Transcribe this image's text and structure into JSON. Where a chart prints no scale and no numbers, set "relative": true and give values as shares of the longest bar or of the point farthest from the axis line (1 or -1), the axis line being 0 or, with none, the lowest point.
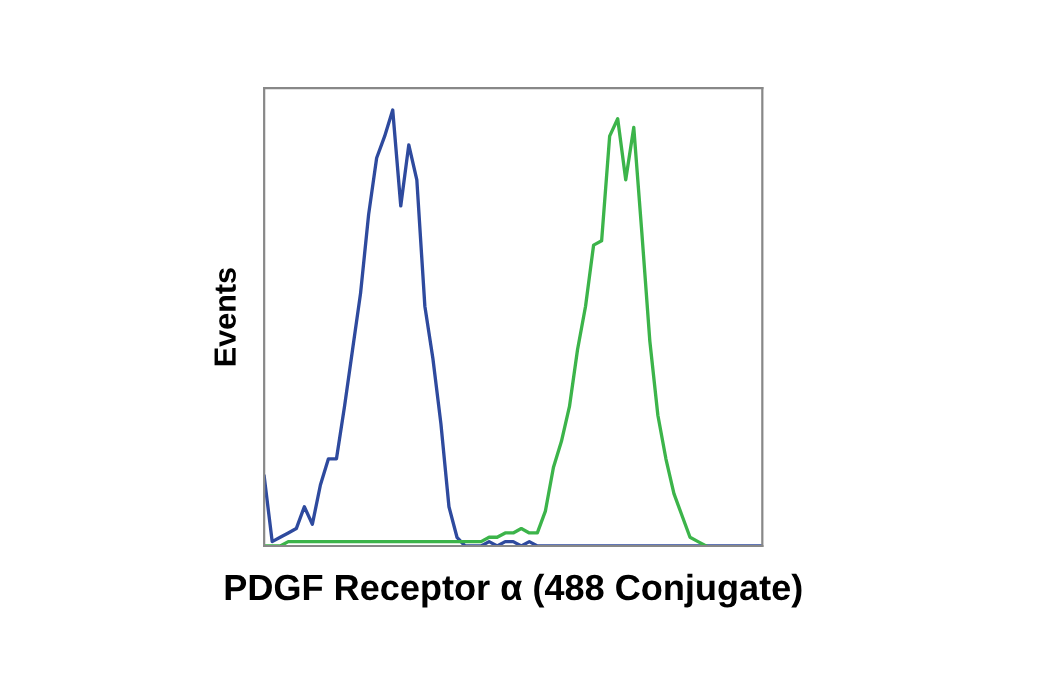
{
  "chart_data": {
    "type": "line",
    "xlabel": "PDGF Receptor α (488 Conjugate)",
    "ylabel": "Events",
    "relative": true,
    "tick_labels": false,
    "categories": [
      null,
      null,
      null,
      null,
      null,
      null,
      null,
      null,
      null,
      null,
      null,
      null,
      null,
      null,
      null,
      null,
      null,
      null,
      null,
      null,
      null,
      null,
      null,
      null,
      null,
      null,
      null,
      null,
      null,
      null,
      null,
      null,
      null,
      null,
      null,
      null,
      null,
      null,
      null,
      null,
      null,
      null,
      null,
      null,
      null,
      null,
      null,
      null,
      null,
      null,
      null,
      null,
      null,
      null,
      null,
      null,
      null,
      null,
      null,
      null,
      null,
      null,
      null
    ],
    "series": [
      {
        "color": "#2e4a9e",
        "values": [
          0.16,
          0.01,
          0.02,
          0.03,
          0.04,
          0.09,
          0.05,
          0.14,
          0.2,
          0.2,
          0.32,
          0.45,
          0.58,
          0.76,
          0.89,
          0.94,
          1,
          0.78,
          0.92,
          0.84,
          0.55,
          0.43,
          0.28,
          0.09,
          0.02,
          0,
          0,
          0,
          0.01,
          0,
          0.01,
          0.01,
          0,
          0.01,
          0,
          0,
          0,
          0,
          0,
          0,
          0,
          0,
          0,
          0,
          0,
          0,
          0,
          0,
          0,
          0,
          0,
          0,
          0,
          0,
          0,
          0,
          0,
          0,
          0,
          0,
          0,
          0,
          0
        ]
      },
      {
        "color": "#3cb44a",
        "values": [
          0,
          0,
          0,
          0.01,
          0.01,
          0.01,
          0.01,
          0.01,
          0.01,
          0.01,
          0.01,
          0.01,
          0.01,
          0.01,
          0.01,
          0.01,
          0.01,
          0.01,
          0.01,
          0.01,
          0.01,
          0.01,
          0.01,
          0.01,
          0.01,
          0.01,
          0.01,
          0.01,
          0.02,
          0.02,
          0.03,
          0.03,
          0.04,
          0.03,
          0.03,
          0.08,
          0.18,
          0.24,
          0.32,
          0.45,
          0.55,
          0.69,
          0.7,
          0.94,
          0.98,
          0.84,
          0.96,
          0.72,
          0.47,
          0.3,
          0.2,
          0.12,
          0.07,
          0.02,
          0.01,
          0,
          null,
          null,
          null,
          null,
          null,
          null,
          null
        ]
      }
    ]
  }
}
